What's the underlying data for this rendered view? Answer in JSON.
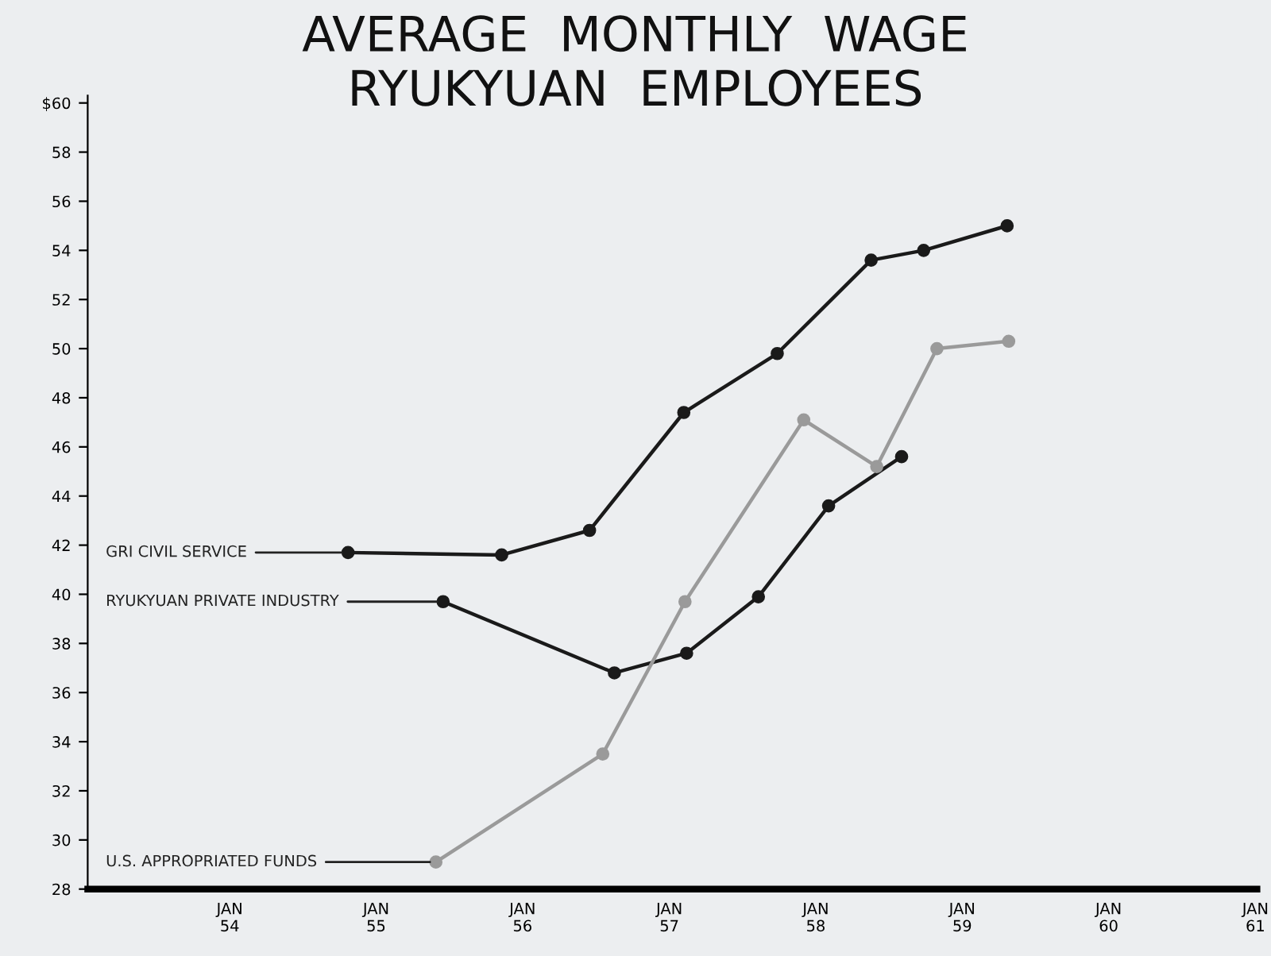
{
  "chart_data": {
    "type": "line",
    "title": "AVERAGE  MONTHLY  WAGE\nRYUKYUAN  EMPLOYEES",
    "xlim": [
      "1953-01-12",
      "1961-01-05"
    ],
    "xticks": [
      {
        "value": "1954-01-01",
        "label": "JAN\n54"
      },
      {
        "value": "1955-01-01",
        "label": "JAN\n55"
      },
      {
        "value": "1956-01-01",
        "label": "JAN\n56"
      },
      {
        "value": "1957-01-01",
        "label": "JAN\n57"
      },
      {
        "value": "1958-01-01",
        "label": "JAN\n58"
      },
      {
        "value": "1959-01-01",
        "label": "JAN\n59"
      },
      {
        "value": "1960-01-01",
        "label": "JAN\n60"
      },
      {
        "value": "1961-01-01",
        "label": "JAN\n61"
      }
    ],
    "ylim": [
      28,
      60.3
    ],
    "yticks": [
      28,
      30,
      32,
      34,
      36,
      38,
      40,
      42,
      44,
      46,
      48,
      50,
      52,
      54,
      56,
      58,
      {
        "value": 60,
        "label": "$60"
      }
    ],
    "grid": false,
    "legend": false,
    "marker": "circle",
    "line_style": "solid",
    "series": [
      {
        "name": "GRI CIVIL SERVICE",
        "color": "#1a1a1a",
        "x": [
          "1954-10-23",
          "1955-11-10",
          "1956-06-16",
          "1957-02-06",
          "1957-09-27",
          "1958-05-19",
          "1958-09-27",
          "1959-04-23"
        ],
        "values": [
          41.7,
          41.6,
          42.6,
          47.4,
          49.8,
          53.6,
          54.0,
          55.0
        ]
      },
      {
        "name": "RYUKYUAN PRIVATE INDUSTRY",
        "color": "#1a1a1a",
        "x": [
          "1955-06-17",
          "1956-08-17",
          "1957-02-13",
          "1957-08-11",
          "1958-02-02",
          "1958-08-03"
        ],
        "values": [
          39.7,
          36.8,
          37.6,
          39.9,
          43.6,
          45.6
        ]
      },
      {
        "name": "U.S. APPROPRIATED FUNDS",
        "color": "#9a9a9a",
        "x": [
          "1955-05-30",
          "1956-07-19",
          "1957-02-09",
          "1957-12-02",
          "1958-06-02",
          "1958-10-30",
          "1959-04-27"
        ],
        "values": [
          29.1,
          33.5,
          39.7,
          47.1,
          45.2,
          50.0,
          50.3
        ]
      }
    ]
  }
}
